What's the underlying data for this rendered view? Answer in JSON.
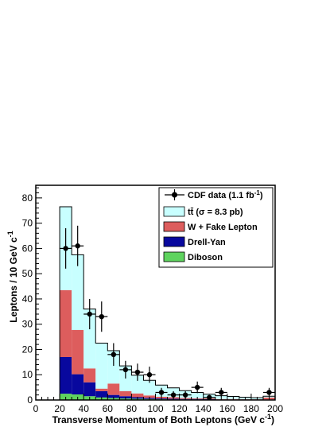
{
  "chart_data": {
    "type": "bar",
    "xlabel": "Transverse Momentum of Both Leptons (GeV c",
    "xlabel_sup": "-1",
    "xlabel_end": ")",
    "ylabel": "Leptons / 10 GeV c",
    "ylabel_sup": "-1",
    "xlim": [
      0,
      200
    ],
    "ylim": [
      0,
      85
    ],
    "x_ticks": [
      0,
      20,
      40,
      60,
      80,
      100,
      120,
      140,
      160,
      180,
      200
    ],
    "y_ticks": [
      0,
      10,
      20,
      30,
      40,
      50,
      60,
      70,
      80
    ],
    "bin_edges": [
      20,
      30,
      40,
      50,
      60,
      70,
      80,
      90,
      100,
      110,
      120,
      130,
      140,
      150,
      160,
      170,
      180,
      190,
      200
    ],
    "stack_series": [
      {
        "key": "diboson",
        "color": "#5ed35e",
        "values": [
          2.5,
          2.2,
          1.5,
          1.0,
          0.8,
          0.6,
          0.5,
          0.4,
          0.3,
          0.2,
          0.2,
          0.2,
          0.1,
          0.1,
          0.1,
          0.1,
          0.1,
          0.1
        ]
      },
      {
        "key": "drell-yan",
        "color": "#08089e",
        "values": [
          14.5,
          8.0,
          5.5,
          2.5,
          1.2,
          0.9,
          0.6,
          0.4,
          0.3,
          0.3,
          0.2,
          0.2,
          0.2,
          0.1,
          0.1,
          0.1,
          0.1,
          0.1
        ]
      },
      {
        "key": "w-fake",
        "color": "#dd5d5d",
        "values": [
          26.5,
          17.5,
          5.5,
          1.0,
          4.5,
          2.0,
          1.5,
          1.0,
          0.7,
          0.6,
          0.4,
          0.3,
          0.3,
          0.2,
          0.2,
          0.1,
          0.1,
          0.8
        ]
      },
      {
        "key": "ttbar",
        "color": "#c8ffff",
        "values": [
          33.0,
          29.8,
          23.5,
          18.0,
          13.0,
          10.0,
          7.2,
          6.0,
          4.6,
          3.7,
          2.9,
          2.3,
          1.7,
          1.3,
          1.0,
          0.8,
          0.6,
          0.5
        ]
      }
    ],
    "data_points": [
      {
        "x": 25,
        "y": 60,
        "yerr": 8
      },
      {
        "x": 35,
        "y": 61,
        "yerr": 8
      },
      {
        "x": 45,
        "y": 34,
        "yerr": 6
      },
      {
        "x": 55,
        "y": 33,
        "yerr": 6
      },
      {
        "x": 65,
        "y": 18,
        "yerr": 4.5
      },
      {
        "x": 75,
        "y": 12,
        "yerr": 3.5
      },
      {
        "x": 85,
        "y": 11,
        "yerr": 3.4
      },
      {
        "x": 95,
        "y": 10,
        "yerr": 3.2
      },
      {
        "x": 105,
        "y": 3,
        "yerr": 1.8
      },
      {
        "x": 115,
        "y": 2,
        "yerr": 1.5
      },
      {
        "x": 125,
        "y": 2,
        "yerr": 1.5
      },
      {
        "x": 135,
        "y": 5,
        "yerr": 2.3
      },
      {
        "x": 145,
        "y": 1,
        "yerr": 1
      },
      {
        "x": 155,
        "y": 3,
        "yerr": 1.8
      },
      {
        "x": 195,
        "y": 3,
        "yerr": 1.8
      }
    ],
    "legend": {
      "position": "top-right",
      "data_label": "CDF data (1.1 fb",
      "data_label_sup": "-1",
      "data_label_end": ")",
      "ttbar_label": "tt̄ (σ = 8.3 pb)",
      "wfake_label": "W + Fake Lepton",
      "dy_label": "Drell-Yan",
      "diboson_label": "Diboson"
    }
  }
}
